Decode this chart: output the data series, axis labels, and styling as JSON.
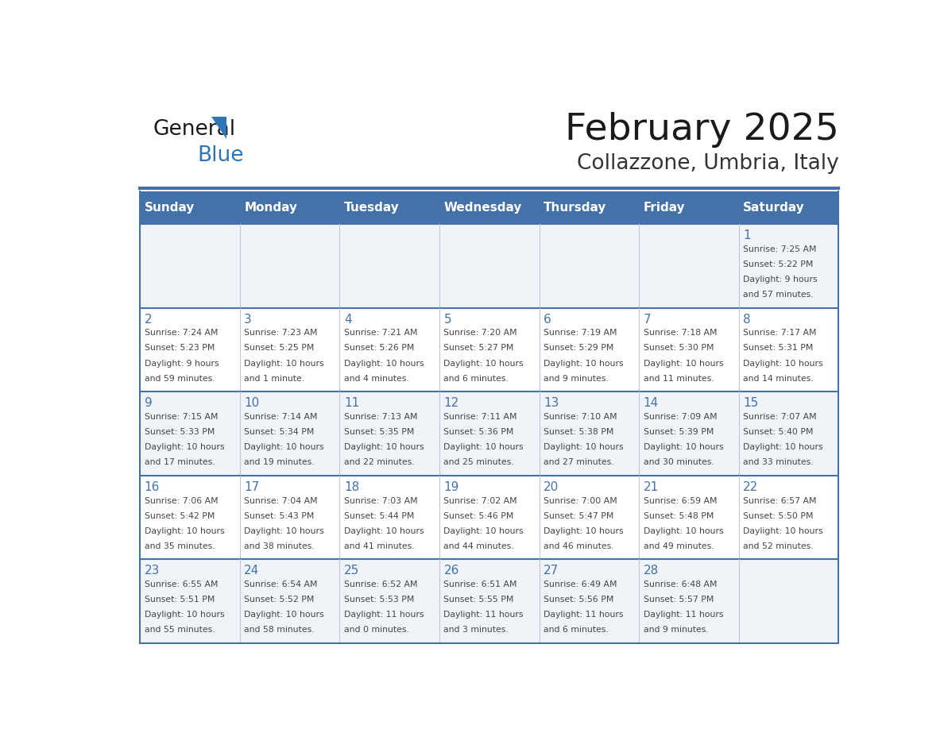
{
  "title": "February 2025",
  "subtitle": "Collazzone, Umbria, Italy",
  "days_of_week": [
    "Sunday",
    "Monday",
    "Tuesday",
    "Wednesday",
    "Thursday",
    "Friday",
    "Saturday"
  ],
  "header_bg": "#4472a8",
  "header_text": "#ffffff",
  "row_bg_odd": "#f0f4f8",
  "row_bg_even": "#ffffff",
  "border_color": "#4472a8",
  "day_num_color": "#4472a8",
  "text_color": "#444444",
  "cell_line_color": "#c0c8d8",
  "weeks": [
    [
      {
        "day": null,
        "sunrise": null,
        "sunset": null,
        "daylight": null
      },
      {
        "day": null,
        "sunrise": null,
        "sunset": null,
        "daylight": null
      },
      {
        "day": null,
        "sunrise": null,
        "sunset": null,
        "daylight": null
      },
      {
        "day": null,
        "sunrise": null,
        "sunset": null,
        "daylight": null
      },
      {
        "day": null,
        "sunrise": null,
        "sunset": null,
        "daylight": null
      },
      {
        "day": null,
        "sunrise": null,
        "sunset": null,
        "daylight": null
      },
      {
        "day": 1,
        "sunrise": "7:25 AM",
        "sunset": "5:22 PM",
        "daylight": "9 hours\nand 57 minutes."
      }
    ],
    [
      {
        "day": 2,
        "sunrise": "7:24 AM",
        "sunset": "5:23 PM",
        "daylight": "9 hours\nand 59 minutes."
      },
      {
        "day": 3,
        "sunrise": "7:23 AM",
        "sunset": "5:25 PM",
        "daylight": "10 hours\nand 1 minute."
      },
      {
        "day": 4,
        "sunrise": "7:21 AM",
        "sunset": "5:26 PM",
        "daylight": "10 hours\nand 4 minutes."
      },
      {
        "day": 5,
        "sunrise": "7:20 AM",
        "sunset": "5:27 PM",
        "daylight": "10 hours\nand 6 minutes."
      },
      {
        "day": 6,
        "sunrise": "7:19 AM",
        "sunset": "5:29 PM",
        "daylight": "10 hours\nand 9 minutes."
      },
      {
        "day": 7,
        "sunrise": "7:18 AM",
        "sunset": "5:30 PM",
        "daylight": "10 hours\nand 11 minutes."
      },
      {
        "day": 8,
        "sunrise": "7:17 AM",
        "sunset": "5:31 PM",
        "daylight": "10 hours\nand 14 minutes."
      }
    ],
    [
      {
        "day": 9,
        "sunrise": "7:15 AM",
        "sunset": "5:33 PM",
        "daylight": "10 hours\nand 17 minutes."
      },
      {
        "day": 10,
        "sunrise": "7:14 AM",
        "sunset": "5:34 PM",
        "daylight": "10 hours\nand 19 minutes."
      },
      {
        "day": 11,
        "sunrise": "7:13 AM",
        "sunset": "5:35 PM",
        "daylight": "10 hours\nand 22 minutes."
      },
      {
        "day": 12,
        "sunrise": "7:11 AM",
        "sunset": "5:36 PM",
        "daylight": "10 hours\nand 25 minutes."
      },
      {
        "day": 13,
        "sunrise": "7:10 AM",
        "sunset": "5:38 PM",
        "daylight": "10 hours\nand 27 minutes."
      },
      {
        "day": 14,
        "sunrise": "7:09 AM",
        "sunset": "5:39 PM",
        "daylight": "10 hours\nand 30 minutes."
      },
      {
        "day": 15,
        "sunrise": "7:07 AM",
        "sunset": "5:40 PM",
        "daylight": "10 hours\nand 33 minutes."
      }
    ],
    [
      {
        "day": 16,
        "sunrise": "7:06 AM",
        "sunset": "5:42 PM",
        "daylight": "10 hours\nand 35 minutes."
      },
      {
        "day": 17,
        "sunrise": "7:04 AM",
        "sunset": "5:43 PM",
        "daylight": "10 hours\nand 38 minutes."
      },
      {
        "day": 18,
        "sunrise": "7:03 AM",
        "sunset": "5:44 PM",
        "daylight": "10 hours\nand 41 minutes."
      },
      {
        "day": 19,
        "sunrise": "7:02 AM",
        "sunset": "5:46 PM",
        "daylight": "10 hours\nand 44 minutes."
      },
      {
        "day": 20,
        "sunrise": "7:00 AM",
        "sunset": "5:47 PM",
        "daylight": "10 hours\nand 46 minutes."
      },
      {
        "day": 21,
        "sunrise": "6:59 AM",
        "sunset": "5:48 PM",
        "daylight": "10 hours\nand 49 minutes."
      },
      {
        "day": 22,
        "sunrise": "6:57 AM",
        "sunset": "5:50 PM",
        "daylight": "10 hours\nand 52 minutes."
      }
    ],
    [
      {
        "day": 23,
        "sunrise": "6:55 AM",
        "sunset": "5:51 PM",
        "daylight": "10 hours\nand 55 minutes."
      },
      {
        "day": 24,
        "sunrise": "6:54 AM",
        "sunset": "5:52 PM",
        "daylight": "10 hours\nand 58 minutes."
      },
      {
        "day": 25,
        "sunrise": "6:52 AM",
        "sunset": "5:53 PM",
        "daylight": "11 hours\nand 0 minutes."
      },
      {
        "day": 26,
        "sunrise": "6:51 AM",
        "sunset": "5:55 PM",
        "daylight": "11 hours\nand 3 minutes."
      },
      {
        "day": 27,
        "sunrise": "6:49 AM",
        "sunset": "5:56 PM",
        "daylight": "11 hours\nand 6 minutes."
      },
      {
        "day": 28,
        "sunrise": "6:48 AM",
        "sunset": "5:57 PM",
        "daylight": "11 hours\nand 9 minutes."
      },
      {
        "day": null,
        "sunrise": null,
        "sunset": null,
        "daylight": null
      }
    ]
  ]
}
